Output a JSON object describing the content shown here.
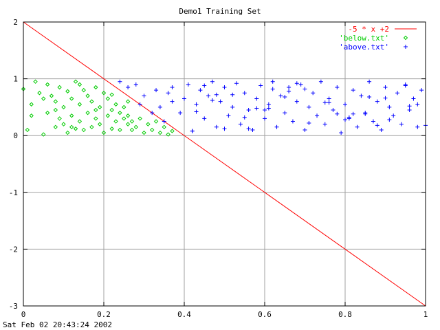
{
  "chart_data": {
    "type": "scatter",
    "title": "Demo1 Training Set",
    "timestamp": "Sat Feb 02 20:43:24 2002",
    "xlim": [
      0,
      1
    ],
    "ylim": [
      -3,
      2
    ],
    "x_ticks": [
      {
        "value": 0,
        "label": "0"
      },
      {
        "value": 0.2,
        "label": "0.2"
      },
      {
        "value": 0.4,
        "label": "0.4"
      },
      {
        "value": 0.6,
        "label": "0.6"
      },
      {
        "value": 0.8,
        "label": "0.8"
      },
      {
        "value": 1,
        "label": "1"
      }
    ],
    "y_ticks": [
      {
        "value": -3,
        "label": "-3"
      },
      {
        "value": -2,
        "label": "-2"
      },
      {
        "value": -1,
        "label": "-1"
      },
      {
        "value": 0,
        "label": "0"
      },
      {
        "value": 1,
        "label": "1"
      },
      {
        "value": 2,
        "label": "2"
      }
    ],
    "grid": true,
    "legend_position": "top-right",
    "series": [
      {
        "name": "-5 * x +2",
        "kind": "line",
        "color": "#ff0000",
        "x": [
          0,
          1
        ],
        "y": [
          2,
          -3
        ]
      },
      {
        "name": "'below.txt'",
        "kind": "points",
        "marker": "diamond",
        "color": "#00cc00",
        "x": [
          0.0,
          0.01,
          0.02,
          0.03,
          0.04,
          0.05,
          0.06,
          0.06,
          0.07,
          0.08,
          0.08,
          0.09,
          0.09,
          0.1,
          0.1,
          0.11,
          0.11,
          0.12,
          0.12,
          0.13,
          0.13,
          0.14,
          0.14,
          0.15,
          0.15,
          0.16,
          0.16,
          0.17,
          0.17,
          0.18,
          0.18,
          0.19,
          0.19,
          0.2,
          0.2,
          0.21,
          0.21,
          0.22,
          0.22,
          0.23,
          0.23,
          0.24,
          0.24,
          0.25,
          0.25,
          0.26,
          0.26,
          0.27,
          0.27,
          0.28,
          0.29,
          0.3,
          0.31,
          0.32,
          0.33,
          0.34,
          0.35,
          0.36,
          0.37,
          0.02,
          0.05,
          0.08,
          0.12,
          0.14,
          0.18,
          0.22,
          0.26
        ],
        "y": [
          0.82,
          0.1,
          0.55,
          0.95,
          0.75,
          0.02,
          0.4,
          0.9,
          0.7,
          0.15,
          0.6,
          0.3,
          0.85,
          0.2,
          0.5,
          0.05,
          0.78,
          0.35,
          0.65,
          0.12,
          0.95,
          0.25,
          0.55,
          0.1,
          0.8,
          0.4,
          0.7,
          0.15,
          0.6,
          0.3,
          0.85,
          0.2,
          0.5,
          0.05,
          0.75,
          0.35,
          0.65,
          0.12,
          0.45,
          0.25,
          0.55,
          0.1,
          0.4,
          0.3,
          0.5,
          0.2,
          0.35,
          0.1,
          0.25,
          0.15,
          0.3,
          0.05,
          0.2,
          0.1,
          0.25,
          0.05,
          0.15,
          0.02,
          0.08,
          0.35,
          0.65,
          0.45,
          0.15,
          0.9,
          0.45,
          0.72,
          0.6
        ]
      },
      {
        "name": "'above.txt'",
        "kind": "points",
        "marker": "plus",
        "color": "#0000ff",
        "x": [
          0.24,
          0.26,
          0.28,
          0.29,
          0.3,
          0.32,
          0.33,
          0.34,
          0.35,
          0.36,
          0.37,
          0.37,
          0.39,
          0.4,
          0.41,
          0.42,
          0.43,
          0.44,
          0.45,
          0.46,
          0.47,
          0.48,
          0.49,
          0.5,
          0.51,
          0.52,
          0.53,
          0.54,
          0.55,
          0.56,
          0.57,
          0.58,
          0.59,
          0.6,
          0.61,
          0.62,
          0.63,
          0.64,
          0.65,
          0.66,
          0.67,
          0.68,
          0.69,
          0.7,
          0.71,
          0.72,
          0.73,
          0.74,
          0.75,
          0.76,
          0.77,
          0.78,
          0.79,
          0.8,
          0.81,
          0.82,
          0.83,
          0.84,
          0.85,
          0.86,
          0.87,
          0.88,
          0.89,
          0.9,
          0.91,
          0.92,
          0.93,
          0.94,
          0.95,
          0.96,
          0.97,
          0.98,
          0.99,
          1.0,
          0.43,
          0.47,
          0.52,
          0.56,
          0.61,
          0.66,
          0.71,
          0.76,
          0.81,
          0.86,
          0.91,
          0.96,
          0.45,
          0.55,
          0.65,
          0.75,
          0.85,
          0.95,
          0.5,
          0.6,
          0.7,
          0.8,
          0.9,
          0.48,
          0.58,
          0.68,
          0.78,
          0.88,
          0.98,
          0.42,
          0.62,
          0.82
        ],
        "y": [
          0.95,
          0.85,
          0.9,
          0.55,
          0.7,
          0.4,
          0.8,
          0.5,
          0.25,
          0.75,
          0.6,
          0.85,
          0.4,
          0.65,
          0.9,
          0.08,
          0.55,
          0.8,
          0.3,
          0.7,
          0.95,
          0.15,
          0.6,
          0.85,
          0.35,
          0.5,
          0.92,
          0.2,
          0.75,
          0.45,
          0.1,
          0.65,
          0.88,
          0.3,
          0.55,
          0.95,
          0.15,
          0.7,
          0.4,
          0.85,
          0.25,
          0.6,
          0.9,
          0.1,
          0.5,
          0.75,
          0.35,
          0.95,
          0.2,
          0.65,
          0.45,
          0.85,
          0.05,
          0.55,
          0.3,
          0.8,
          0.15,
          0.7,
          0.4,
          0.95,
          0.25,
          0.6,
          0.1,
          0.85,
          0.5,
          0.35,
          0.75,
          0.2,
          0.9,
          0.45,
          0.65,
          0.15,
          0.8,
          0.18,
          0.42,
          0.62,
          0.72,
          0.12,
          0.48,
          0.78,
          0.22,
          0.58,
          0.32,
          0.68,
          0.28,
          0.52,
          0.88,
          0.32,
          0.68,
          0.58,
          0.38,
          0.88,
          0.12,
          0.45,
          0.82,
          0.28,
          0.66,
          0.72,
          0.48,
          0.92,
          0.38,
          0.18,
          0.55,
          0.08,
          0.82,
          0.38
        ]
      }
    ]
  }
}
